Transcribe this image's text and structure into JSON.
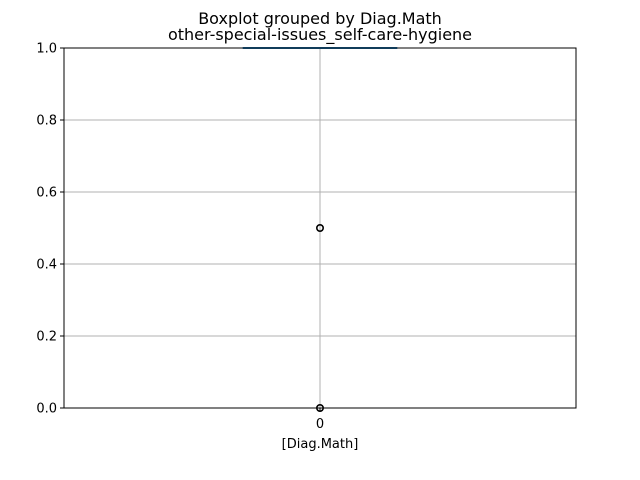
{
  "chart_data": {
    "type": "box",
    "suptitle": "Boxplot grouped by Diag.Math",
    "title": "other-special-issues_self-care-hygiene",
    "xlabel": "[Diag.Math]",
    "ylabel": "",
    "categories": [
      "0"
    ],
    "ylim": [
      0,
      1
    ],
    "yticks": [
      0.0,
      0.2,
      0.4,
      0.6,
      0.8,
      1.0
    ],
    "ytick_labels": [
      "0.0",
      "0.2",
      "0.4",
      "0.6",
      "0.8",
      "1.0"
    ],
    "grid": true,
    "boxes": [
      {
        "category": "0",
        "whislo": 1.0,
        "q1": 1.0,
        "median": 1.0,
        "q3": 1.0,
        "whishi": 1.0,
        "fliers": [
          0.5,
          0.0
        ]
      }
    ],
    "colors": {
      "box": "#1f77b4",
      "median": "#2ca02c",
      "grid": "#b0b0b0",
      "axis": "#000000"
    }
  }
}
